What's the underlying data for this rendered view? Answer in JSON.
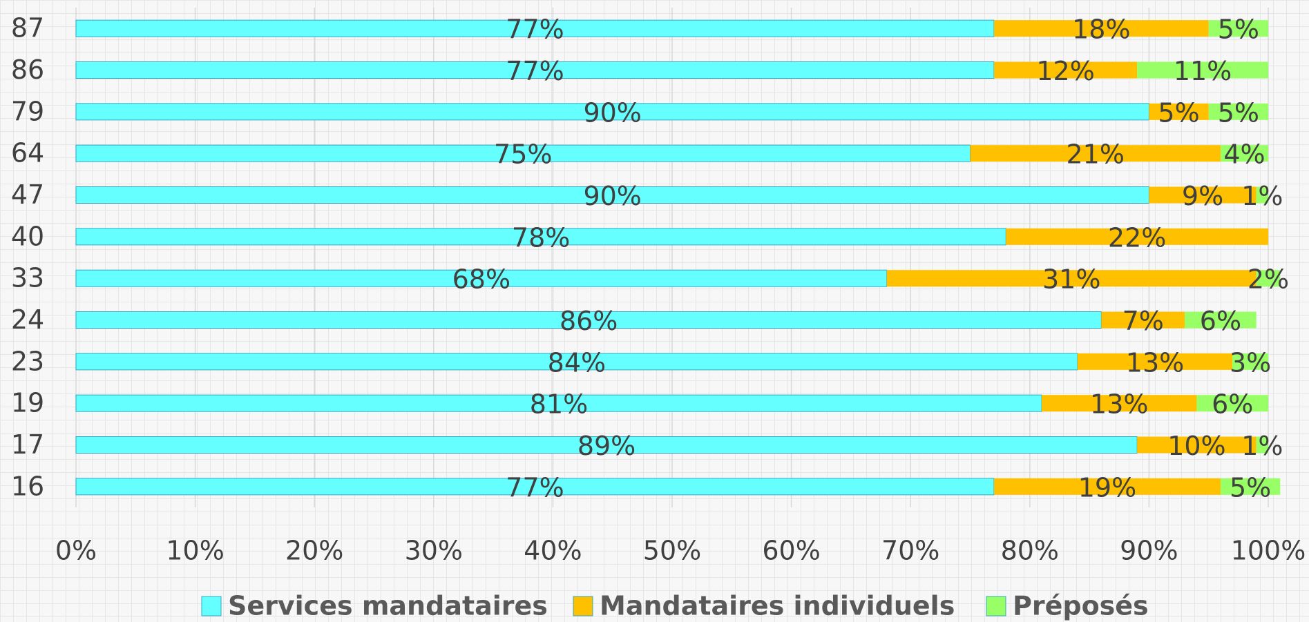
{
  "chart_data": {
    "type": "stacked-bar-horizontal",
    "categories": [
      "87",
      "86",
      "79",
      "64",
      "47",
      "40",
      "33",
      "24",
      "23",
      "19",
      "17",
      "16"
    ],
    "series": [
      {
        "name": "Services mandataires",
        "color": "#66ffff",
        "values": [
          77,
          77,
          90,
          75,
          90,
          78,
          68,
          86,
          84,
          81,
          89,
          77
        ],
        "value_labels": [
          "77%",
          "77%",
          "90%",
          "75%",
          "90%",
          "78%",
          "68%",
          "86%",
          "84%",
          "81%",
          "89%",
          "77%"
        ]
      },
      {
        "name": "Mandataires individuels",
        "color": "#ffc000",
        "values": [
          18,
          12,
          5,
          21,
          9,
          22,
          31,
          7,
          13,
          13,
          10,
          19
        ],
        "value_labels": [
          "18%",
          "12%",
          "5%",
          "21%",
          "9%",
          "22%",
          "31%",
          "7%",
          "13%",
          "13%",
          "10%",
          "19%"
        ]
      },
      {
        "name": "Préposés",
        "color": "#99ff66",
        "values": [
          5,
          11,
          5,
          4,
          1,
          null,
          2,
          6,
          3,
          6,
          1,
          5
        ],
        "value_labels": [
          "5%",
          "11%",
          "5%",
          "4%",
          "1%",
          null,
          "2%",
          "6%",
          "3%",
          "6%",
          "1%",
          "5%"
        ]
      }
    ],
    "xlim": [
      0,
      100
    ],
    "xticks": [
      {
        "value": 0,
        "label": "0%"
      },
      {
        "value": 10,
        "label": "10%"
      },
      {
        "value": 20,
        "label": "20%"
      },
      {
        "value": 30,
        "label": "30%"
      },
      {
        "value": 40,
        "label": "40%"
      },
      {
        "value": 50,
        "label": "50%"
      },
      {
        "value": 60,
        "label": "60%"
      },
      {
        "value": 70,
        "label": "70%"
      },
      {
        "value": 80,
        "label": "80%"
      },
      {
        "value": 90,
        "label": "90%"
      },
      {
        "value": 100,
        "label": "100%"
      }
    ],
    "grid": true,
    "legend": "bottom"
  }
}
